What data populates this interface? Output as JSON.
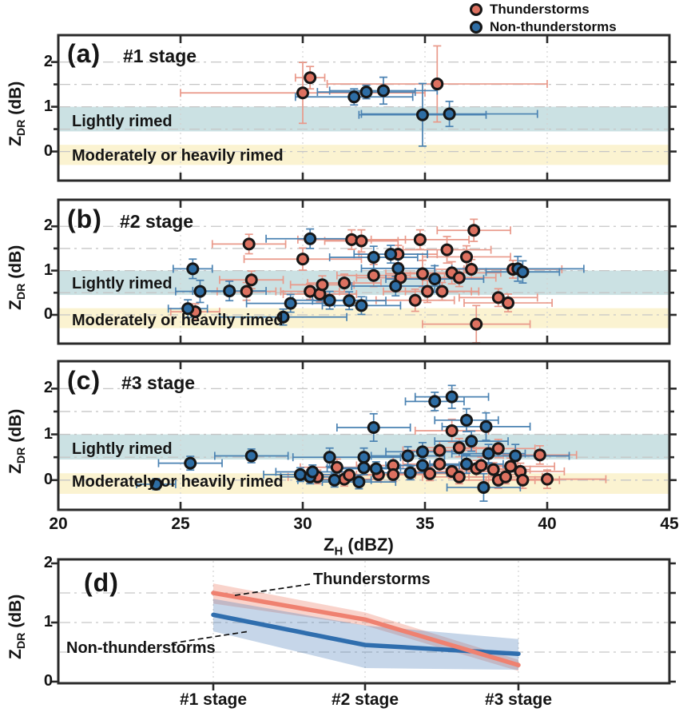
{
  "legend": {
    "items": [
      {
        "label": "Thunderstorms",
        "color": "#dd7160"
      },
      {
        "label": "Non-thunderstorms",
        "color": "#2e6da4"
      }
    ]
  },
  "axes": {
    "x_label_main": "Z",
    "x_label_sub": "H",
    "x_label_unit": " (dBZ)",
    "y_label_main": "Z",
    "y_label_sub": "DR",
    "y_label_unit": " (dB)",
    "x_ticks": [
      20,
      25,
      30,
      35,
      40,
      45
    ],
    "y_ticks": [
      0,
      1,
      2
    ],
    "x_range": [
      20,
      45
    ],
    "y_range": [
      -0.65,
      2.6
    ],
    "x_gridlines": [
      25,
      30,
      35,
      40
    ],
    "y_gridlines": [
      0,
      0.5,
      1,
      1.5,
      2
    ]
  },
  "bands": {
    "lightly": {
      "label": "Lightly rimed",
      "range": [
        0.45,
        1.0
      ],
      "color": "#cbe1e3"
    },
    "moderately": {
      "label": "Moderately or heavily rimed",
      "range": [
        -0.3,
        0.15
      ],
      "color": "#fbf3d1"
    }
  },
  "chart_data": [
    {
      "id": "a",
      "type": "scatter",
      "label": "(a)",
      "stage": "#1 stage",
      "xlabel": "Z_H (dBZ)",
      "ylabel": "Z_DR (dB)",
      "point_format": "[zh_dbz, zdr_db, xerr, yerr]",
      "series": [
        {
          "name": "Thunderstorms",
          "color": "#dd7160",
          "err_color": "#e9998a",
          "points": [
            [
              30.3,
              1.65,
              0.6,
              0.25
            ],
            [
              30.0,
              1.31,
              5.0,
              0.68
            ],
            [
              35.5,
              1.51,
              4.5,
              0.85
            ]
          ]
        },
        {
          "name": "Non-thunderstorms",
          "color": "#2e6da4",
          "err_color": "#4a82b2",
          "points": [
            [
              32.1,
              1.22,
              2.4,
              0.18
            ],
            [
              32.6,
              1.33,
              2.0,
              0.15
            ],
            [
              33.3,
              1.36,
              2.2,
              0.3
            ],
            [
              34.9,
              0.82,
              2.6,
              0.7
            ],
            [
              36.0,
              0.84,
              3.6,
              0.28
            ]
          ]
        }
      ]
    },
    {
      "id": "b",
      "type": "scatter",
      "label": "(b)",
      "stage": "#2 stage",
      "xlabel": "Z_H (dBZ)",
      "ylabel": "Z_DR (dB)",
      "point_format": "[zh_dbz, zdr_db, xerr, yerr]",
      "series": [
        {
          "name": "Thunderstorms",
          "color": "#dd7160",
          "err_color": "#e9998a",
          "points": [
            [
              25.6,
              0.07,
              1.0,
              0.18
            ],
            [
              27.7,
              0.53,
              1.2,
              0.2
            ],
            [
              27.9,
              0.79,
              1.3,
              0.2
            ],
            [
              27.8,
              1.6,
              1.5,
              0.22
            ],
            [
              30.0,
              1.26,
              2.4,
              0.25
            ],
            [
              30.3,
              0.53,
              1.2,
              0.18
            ],
            [
              30.7,
              0.47,
              1.5,
              0.18
            ],
            [
              30.8,
              0.68,
              1.3,
              0.2
            ],
            [
              31.7,
              0.72,
              1.5,
              0.2
            ],
            [
              32.0,
              1.7,
              2.2,
              0.22
            ],
            [
              32.4,
              1.67,
              1.5,
              0.25
            ],
            [
              32.9,
              0.89,
              1.5,
              0.25
            ],
            [
              33.9,
              1.37,
              1.6,
              0.2
            ],
            [
              34.0,
              0.84,
              1.8,
              0.2
            ],
            [
              34.6,
              0.33,
              1.6,
              0.25
            ],
            [
              34.8,
              1.7,
              2.0,
              0.22
            ],
            [
              34.9,
              0.93,
              1.5,
              0.3
            ],
            [
              35.1,
              0.53,
              1.8,
              0.25
            ],
            [
              35.7,
              0.53,
              1.5,
              0.2
            ],
            [
              35.9,
              1.47,
              1.8,
              0.3
            ],
            [
              36.1,
              0.95,
              2.0,
              0.25
            ],
            [
              36.4,
              0.84,
              1.5,
              0.2
            ],
            [
              36.7,
              1.31,
              1.8,
              0.25
            ],
            [
              36.9,
              1.03,
              1.5,
              0.22
            ],
            [
              37.0,
              1.91,
              1.5,
              0.25
            ],
            [
              38.6,
              1.03,
              2.0,
              0.2
            ],
            [
              38.0,
              0.39,
              1.6,
              0.2
            ],
            [
              38.4,
              0.27,
              1.8,
              0.2
            ],
            [
              37.1,
              -0.21,
              2.2,
              0.42
            ]
          ]
        },
        {
          "name": "Non-thunderstorms",
          "color": "#2e6da4",
          "err_color": "#4a82b2",
          "points": [
            [
              25.5,
              1.04,
              0.8,
              0.22
            ],
            [
              25.8,
              0.53,
              1.0,
              0.25
            ],
            [
              25.3,
              0.14,
              0.8,
              0.2
            ],
            [
              27.0,
              0.54,
              1.5,
              0.22
            ],
            [
              29.5,
              0.26,
              1.8,
              0.2
            ],
            [
              29.2,
              -0.05,
              2.6,
              0.18
            ],
            [
              30.3,
              1.72,
              1.8,
              0.22
            ],
            [
              31.1,
              0.33,
              1.5,
              0.2
            ],
            [
              31.9,
              0.32,
              1.5,
              0.2
            ],
            [
              32.4,
              0.21,
              1.6,
              0.2
            ],
            [
              32.9,
              1.3,
              1.8,
              0.25
            ],
            [
              33.6,
              1.37,
              1.5,
              0.2
            ],
            [
              33.9,
              1.05,
              1.5,
              0.3
            ],
            [
              33.8,
              0.65,
              1.8,
              0.22
            ],
            [
              35.4,
              0.81,
              2.0,
              0.3
            ],
            [
              38.8,
              1.04,
              2.7,
              0.28
            ],
            [
              39.0,
              0.97,
              1.5,
              0.25
            ]
          ]
        }
      ]
    },
    {
      "id": "c",
      "type": "scatter",
      "label": "(c)",
      "stage": "#3 stage",
      "xlabel": "Z_H (dBZ)",
      "ylabel": "Z_DR (dB)",
      "point_format": "[zh_dbz, zdr_db, xerr, yerr]",
      "series": [
        {
          "name": "Thunderstorms",
          "color": "#dd7160",
          "err_color": "#e9998a",
          "points": [
            [
              30.6,
              0.07,
              1.2,
              0.15
            ],
            [
              31.4,
              0.28,
              1.5,
              0.18
            ],
            [
              31.7,
              0.02,
              1.5,
              0.15
            ],
            [
              31.9,
              0.11,
              1.4,
              0.15
            ],
            [
              33.1,
              0.12,
              1.5,
              0.15
            ],
            [
              33.7,
              0.32,
              1.5,
              0.18
            ],
            [
              33.7,
              0.12,
              1.5,
              0.15
            ],
            [
              35.2,
              0.14,
              1.6,
              0.15
            ],
            [
              35.6,
              0.65,
              1.5,
              0.2
            ],
            [
              35.6,
              0.35,
              1.5,
              0.18
            ],
            [
              36.1,
              1.08,
              1.5,
              0.25
            ],
            [
              36.1,
              0.19,
              1.5,
              0.15
            ],
            [
              36.4,
              0.71,
              1.5,
              0.2
            ],
            [
              36.4,
              0.07,
              1.5,
              0.15
            ],
            [
              37.1,
              0.25,
              1.5,
              0.18
            ],
            [
              37.3,
              0.32,
              1.5,
              0.18
            ],
            [
              37.8,
              0.23,
              1.5,
              0.15
            ],
            [
              38.0,
              0.69,
              1.5,
              0.2
            ],
            [
              38.0,
              0.0,
              1.5,
              0.18
            ],
            [
              38.3,
              0.07,
              1.5,
              0.15
            ],
            [
              38.5,
              0.3,
              1.8,
              0.18
            ],
            [
              38.9,
              0.19,
              1.8,
              0.18
            ],
            [
              39.0,
              0.0,
              1.5,
              0.18
            ],
            [
              39.7,
              0.55,
              1.5,
              0.2
            ],
            [
              40.0,
              0.02,
              2.4,
              0.2
            ]
          ]
        },
        {
          "name": "Non-thunderstorms",
          "color": "#2e6da4",
          "err_color": "#4a82b2",
          "points": [
            [
              24.0,
              -0.09,
              0.8,
              0.12
            ],
            [
              25.4,
              0.37,
              1.3,
              0.15
            ],
            [
              27.9,
              0.53,
              1.5,
              0.15
            ],
            [
              29.9,
              0.12,
              1.5,
              0.15
            ],
            [
              30.3,
              0.07,
              1.2,
              0.15
            ],
            [
              30.4,
              0.18,
              1.5,
              0.15
            ],
            [
              31.1,
              0.5,
              1.5,
              0.2
            ],
            [
              31.3,
              0.0,
              1.5,
              0.15
            ],
            [
              32.3,
              -0.04,
              1.5,
              0.15
            ],
            [
              32.5,
              0.5,
              1.5,
              0.2
            ],
            [
              32.5,
              0.27,
              1.5,
              0.15
            ],
            [
              32.9,
              1.15,
              1.5,
              0.3
            ],
            [
              33.0,
              0.25,
              1.5,
              0.15
            ],
            [
              34.3,
              0.53,
              1.5,
              0.2
            ],
            [
              34.4,
              0.16,
              1.5,
              0.15
            ],
            [
              34.9,
              0.62,
              1.5,
              0.2
            ],
            [
              34.9,
              0.32,
              1.5,
              0.15
            ],
            [
              35.4,
              1.72,
              1.2,
              0.2
            ],
            [
              36.1,
              1.82,
              1.5,
              0.25
            ],
            [
              36.7,
              1.31,
              1.3,
              0.25
            ],
            [
              36.7,
              0.35,
              1.5,
              0.2
            ],
            [
              36.9,
              0.85,
              1.5,
              0.22
            ],
            [
              37.5,
              1.17,
              1.8,
              0.3
            ],
            [
              37.6,
              0.58,
              1.5,
              0.2
            ],
            [
              37.4,
              -0.16,
              1.5,
              0.3
            ],
            [
              38.7,
              0.53,
              2.2,
              0.25
            ]
          ]
        }
      ]
    },
    {
      "id": "d",
      "type": "line",
      "label": "(d)",
      "ylabel": "Z_DR (dB)",
      "categories": [
        "#1 stage",
        "#2 stage",
        "#3 stage"
      ],
      "y_ticks": [
        0,
        1,
        2
      ],
      "series": [
        {
          "name": "Thunderstorms",
          "color": "#ef8170",
          "band_color": "rgba(239,128,107,0.35)",
          "values": [
            1.5,
            1.05,
            0.28
          ],
          "band_low": [
            1.32,
            0.95,
            0.18
          ],
          "band_high": [
            1.66,
            1.17,
            0.37
          ]
        },
        {
          "name": "Non-thunderstorms",
          "color": "#2f6eae",
          "band_color": "rgba(78,128,188,0.32)",
          "values": [
            1.13,
            0.62,
            0.47
          ],
          "band_low": [
            0.85,
            0.23,
            0.2
          ],
          "band_high": [
            1.4,
            0.95,
            0.72
          ]
        }
      ]
    }
  ]
}
